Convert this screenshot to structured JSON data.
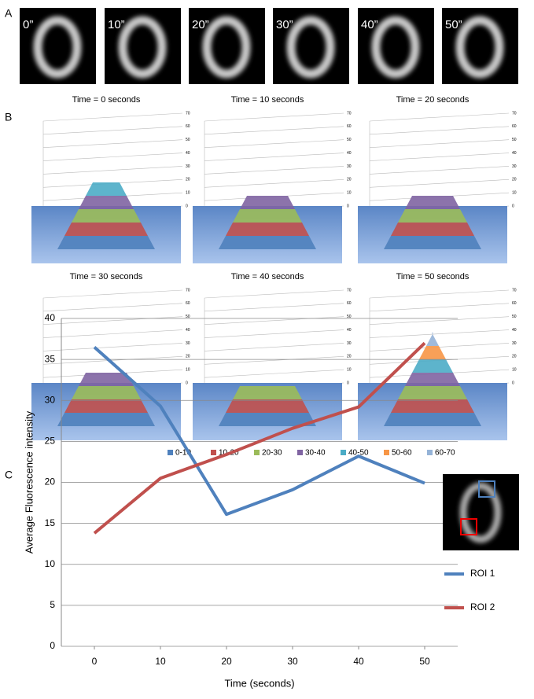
{
  "panel_labels": [
    "A",
    "B",
    "C"
  ],
  "images": [
    "0”",
    "10”",
    "20”",
    "30”",
    "40”",
    "50”"
  ],
  "surface_plots": {
    "titles": [
      "Time = 0 seconds",
      "Time = 10 seconds",
      "Time = 20 seconds",
      "Time = 30 seconds",
      "Time = 40 seconds",
      "Time = 50 seconds"
    ],
    "zticks": [
      0,
      10,
      20,
      30,
      40,
      50,
      60,
      70
    ],
    "legend": [
      {
        "name": "0-10",
        "color": "#4f81bd"
      },
      {
        "name": "10-20",
        "color": "#c0504d"
      },
      {
        "name": "20-30",
        "color": "#9bbb59"
      },
      {
        "name": "30-40",
        "color": "#8064a2"
      },
      {
        "name": "40-50",
        "color": "#4bacc6"
      },
      {
        "name": "50-60",
        "color": "#f79646"
      },
      {
        "name": "60-70",
        "color": "#95b3d7"
      }
    ]
  },
  "chart_data": {
    "type": "line",
    "x": [
      0,
      10,
      20,
      30,
      40,
      50
    ],
    "series": [
      {
        "name": "ROI 1",
        "color": "#4f81bd",
        "values": [
          36.5,
          29.3,
          16.1,
          19.1,
          23.2,
          19.9
        ]
      },
      {
        "name": "ROI 2",
        "color": "#c0504d",
        "values": [
          13.8,
          20.5,
          23.4,
          26.6,
          29.2,
          37.0
        ]
      }
    ],
    "xlim": [
      -5,
      55
    ],
    "xticks": [
      0,
      10,
      20,
      30,
      40,
      50
    ],
    "ylim": [
      0,
      40
    ],
    "yticks": [
      0,
      5,
      10,
      15,
      20,
      25,
      30,
      35,
      40
    ],
    "xlabel": "Time (seconds)",
    "ylabel": "Average Fluorescence intensity",
    "grid": true
  }
}
